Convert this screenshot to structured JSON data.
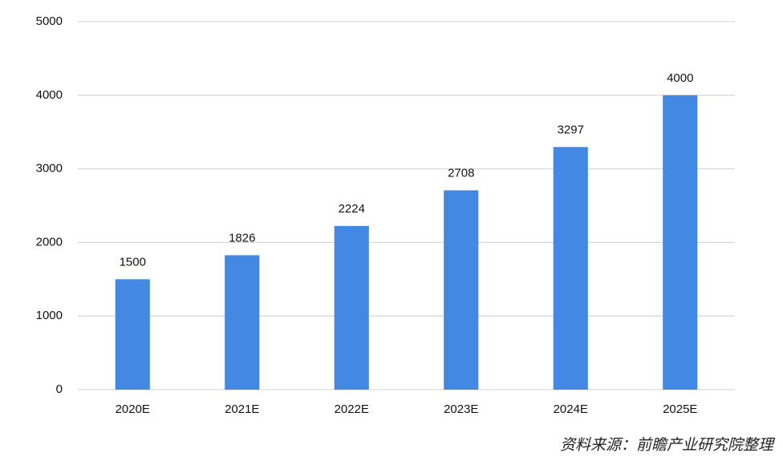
{
  "chart_data": {
    "type": "bar",
    "categories": [
      "2020E",
      "2021E",
      "2022E",
      "2023E",
      "2024E",
      "2025E"
    ],
    "values": [
      1500,
      1826,
      2224,
      2708,
      3297,
      4000
    ],
    "color": "#4388e2",
    "ylim": [
      0,
      5000
    ],
    "yticks": [
      0,
      1000,
      2000,
      3000,
      4000,
      5000
    ],
    "grid": true,
    "source": "资料来源：前瞻产业研究院整理"
  }
}
